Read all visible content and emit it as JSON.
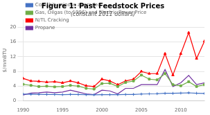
{
  "chart_data": {
    "type": "line",
    "title": "Figure 1: Past Feedstock Prices",
    "subtitle": "(constant 2011 dollars)",
    "ylabel": "$/mmBTU",
    "x": [
      1990,
      1991,
      1992,
      1993,
      1994,
      1995,
      1996,
      1997,
      1998,
      1999,
      2000,
      2001,
      2002,
      2003,
      2004,
      2005,
      2006,
      2007,
      2008,
      2009,
      2010,
      2011,
      2012,
      2013
    ],
    "series": [
      {
        "name": "Coal, bituminous averaged",
        "color": "#4472C4",
        "marker": "plus",
        "values": [
          1.85,
          1.8,
          1.78,
          1.75,
          1.72,
          1.7,
          1.75,
          1.72,
          1.68,
          1.65,
          1.68,
          1.7,
          1.68,
          1.72,
          1.75,
          1.85,
          1.9,
          1.95,
          2.05,
          2.05,
          2.1,
          2.18,
          2.08,
          2.02
        ]
      },
      {
        "name": "Gas, Oilgas (to 1996) and Electric Power Price",
        "color": "#70AD47",
        "marker": "square",
        "values": [
          4.5,
          4.2,
          3.9,
          4.0,
          3.8,
          3.9,
          4.2,
          4.0,
          3.4,
          3.2,
          4.7,
          4.8,
          3.9,
          5.0,
          5.4,
          7.0,
          5.9,
          5.7,
          7.4,
          4.4,
          4.1,
          5.2,
          3.9,
          4.4
        ]
      },
      {
        "name": "N/TL Cracking",
        "color": "#FF0000",
        "marker": "triangle",
        "values": [
          6.1,
          5.4,
          5.3,
          5.1,
          5.2,
          4.9,
          5.4,
          4.9,
          4.1,
          3.9,
          5.9,
          5.4,
          4.4,
          5.4,
          5.9,
          8.0,
          7.4,
          7.4,
          12.8,
          7.0,
          12.8,
          18.5,
          11.5,
          16.2
        ]
      },
      {
        "name": "Propane",
        "color": "#7030A0",
        "marker": "none",
        "values": [
          1.6,
          2.1,
          2.2,
          2.4,
          2.2,
          2.4,
          2.9,
          2.4,
          1.9,
          1.7,
          2.9,
          2.7,
          1.9,
          3.4,
          3.4,
          4.4,
          4.4,
          4.4,
          8.5,
          3.9,
          4.9,
          6.9,
          4.4,
          4.9
        ]
      }
    ],
    "xlim": [
      1990,
      2013
    ],
    "xticks": [
      1990,
      1995,
      2000,
      2005,
      2010
    ],
    "ylim": [
      0,
      22
    ],
    "yticks": [
      0,
      4,
      8,
      12,
      16,
      20
    ],
    "grid": "y",
    "legend": "upper left"
  }
}
